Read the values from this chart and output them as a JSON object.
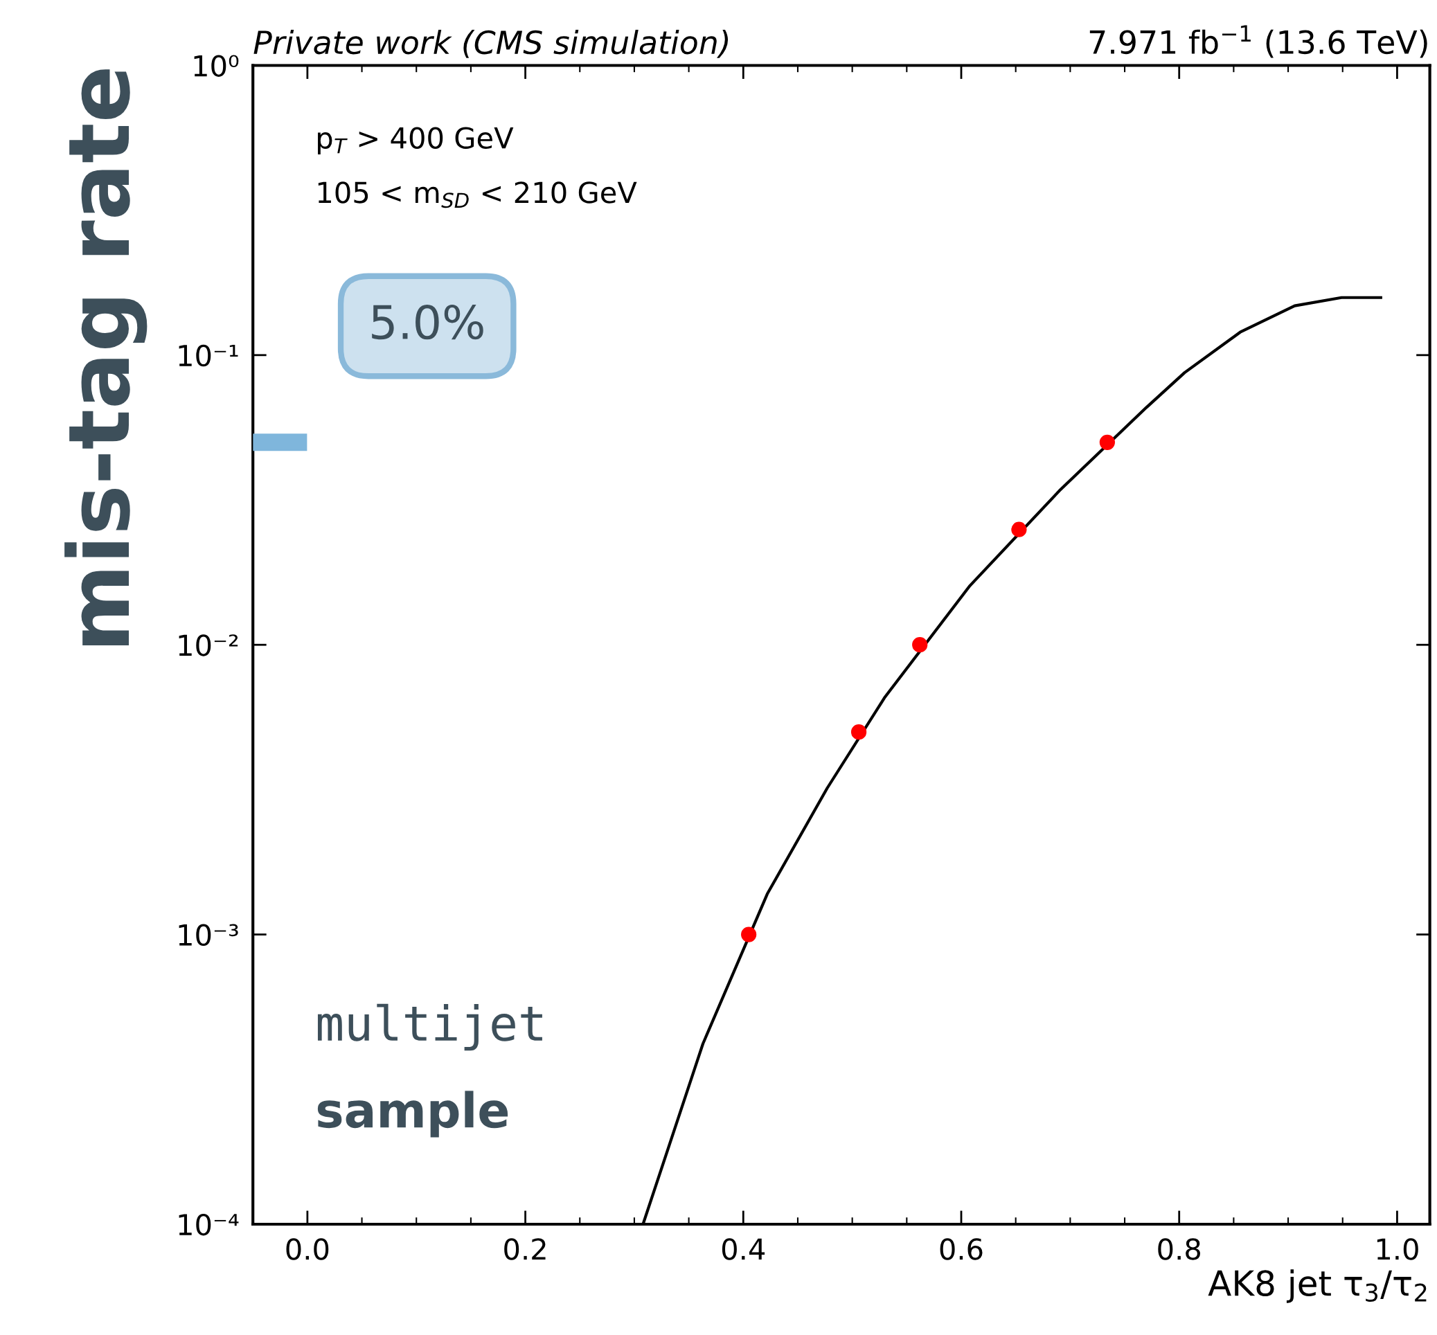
{
  "chart_data": {
    "type": "line",
    "title": "Private work (CMS simulation)",
    "subtitle": "7.971 fb$^{−1}$ (13.6 TeV)",
    "xlabel": "AK8 jet τ$_{3}$/τ$_{2}$",
    "ylabel": "mis-tag rate",
    "log": "y",
    "xlim": [
      -0.05,
      1.03
    ],
    "ylim": [
      0.0001,
      1
    ],
    "xticks": [
      {
        "value": 0,
        "label": "0.0"
      },
      {
        "value": 0.2,
        "label": "0.2"
      },
      {
        "value": 0.4,
        "label": "0.4"
      },
      {
        "value": 0.6,
        "label": "0.6"
      },
      {
        "value": 0.8,
        "label": "0.8"
      },
      {
        "value": 1,
        "label": "1.0"
      }
    ],
    "yticks": [
      {
        "value": 0.0001,
        "label": "10⁻⁴"
      },
      {
        "value": 0.001,
        "label": "10⁻³"
      },
      {
        "value": 0.01,
        "label": "10⁻²"
      },
      {
        "value": 0.1,
        "label": "10⁻¹"
      },
      {
        "value": 1,
        "label": "10⁰"
      }
    ],
    "grid": false,
    "series": [
      {
        "color": "#000000",
        "marker": "none",
        "line_style": "solid",
        "x": [
          0.308,
          0.363,
          0.422,
          0.477,
          0.53,
          0.608,
          0.69,
          0.77,
          0.805,
          0.856,
          0.906,
          0.949,
          0.985
        ],
        "values": [
          0.0001,
          0.00042,
          0.00138,
          0.0032,
          0.0066,
          0.016,
          0.034,
          0.066,
          0.087,
          0.12,
          0.148,
          0.158,
          0.158
        ]
      },
      {
        "type": "scatter",
        "color": "#ff0000",
        "marker": "circle",
        "x": [
          0.405,
          0.506,
          0.562,
          0.653,
          0.734
        ],
        "values": [
          0.001,
          0.005,
          0.01,
          0.025,
          0.05
        ]
      }
    ],
    "annotations": [
      "p$_{T}$ > 400 GeV",
      "105 < m$_{SD}$ < 210 GeV",
      "5.0%",
      "multijet",
      "sample"
    ]
  }
}
